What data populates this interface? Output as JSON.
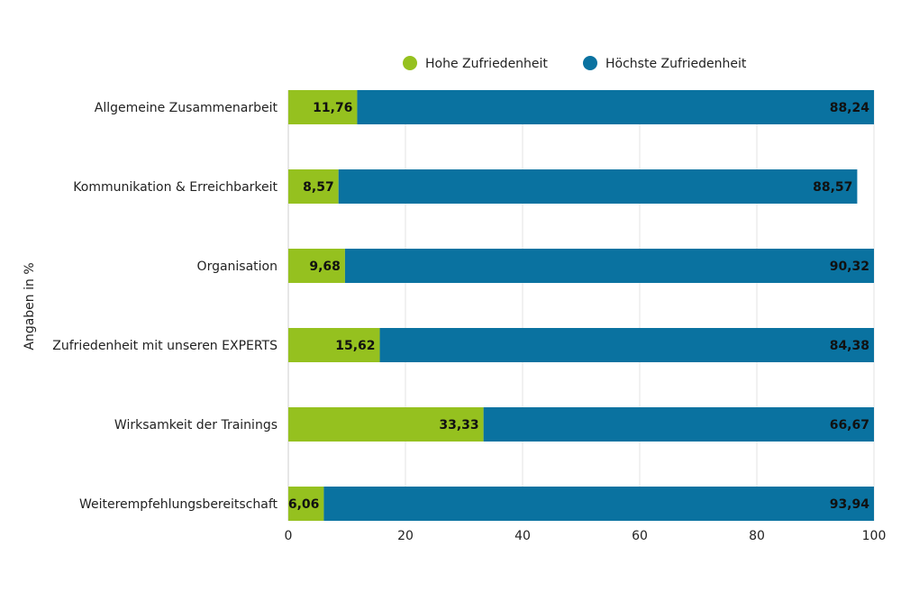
{
  "chart_data": {
    "type": "bar",
    "orientation": "horizontal",
    "stacked": true,
    "title": "",
    "xlabel": "",
    "ylabel": "Angaben in %",
    "xlim": [
      0,
      100
    ],
    "xticks": [
      "0",
      "20",
      "40",
      "60",
      "80",
      "100"
    ],
    "grid": true,
    "legend_position": "top-center",
    "categories": [
      "Allgemeine Zusammenarbeit",
      "Kommunikation & Erreichbarkeit",
      "Organisation",
      "Zufriedenheit mit unseren EXPERTS",
      "Wirksamkeit der Trainings",
      "Weiterempfehlungsbereitschaft"
    ],
    "series": [
      {
        "name": "Hohe Zufriedenheit",
        "color": "#95c11f",
        "values": [
          11.76,
          8.57,
          9.68,
          15.62,
          33.33,
          6.06
        ],
        "labels": [
          "11,76",
          "8,57",
          "9,68",
          "15,62",
          "33,33",
          "6,06"
        ]
      },
      {
        "name": "Höchste Zufriedenheit",
        "color": "#0a72a0",
        "values": [
          88.24,
          88.57,
          90.32,
          84.38,
          66.67,
          93.94
        ],
        "labels": [
          "88,24",
          "88,57",
          "90,32",
          "84,38",
          "66,67",
          "93,94"
        ]
      }
    ]
  }
}
